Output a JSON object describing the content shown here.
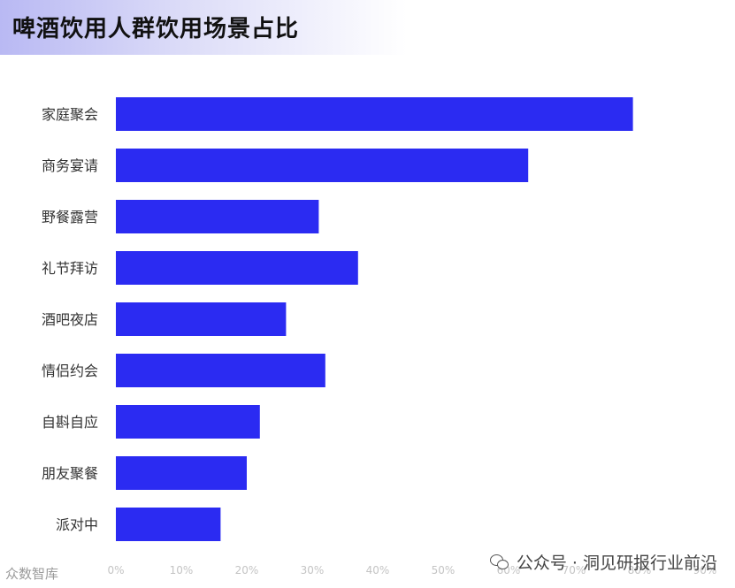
{
  "title": "啤酒饮用人群饮用场景占比",
  "chart_data": {
    "type": "bar",
    "orientation": "horizontal",
    "categories": [
      "家庭聚会",
      "商务宴请",
      "野餐露营",
      "礼节拜访",
      "酒吧夜店",
      "情侣约会",
      "自斟自应",
      "朋友聚餐",
      "派对中"
    ],
    "values": [
      79,
      63,
      31,
      37,
      26,
      32,
      22,
      20,
      16
    ],
    "xlim": [
      0,
      90
    ],
    "xticks": [
      "0%",
      "10%",
      "20%",
      "30%",
      "40%",
      "50%",
      "60%",
      "70%",
      "80%",
      "90%"
    ],
    "grid": false,
    "bar_color": "#2b2bf2"
  },
  "watermark_left": "众数智库",
  "watermark_right": "公众号 · 洞见研报行业前沿",
  "icons": {
    "watermark_right": "wechat-icon"
  }
}
